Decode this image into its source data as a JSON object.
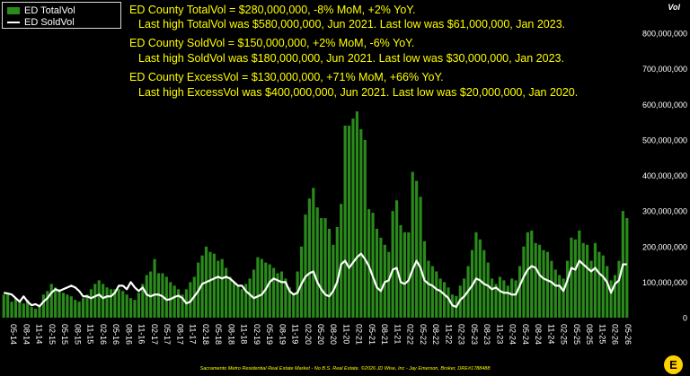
{
  "legend": {
    "total_label": "ED TotalVol",
    "sold_label": "ED SoldVol"
  },
  "unit_label": "Vol",
  "annotations": {
    "total_line1": "ED County TotalVol = $280,000,000, -8% MoM, +2% YoY.",
    "total_line2": "Last high TotalVol was $580,000,000, Jun 2021. Last low was $61,000,000, Jan 2023.",
    "sold_line1": "ED County SoldVol = $150,000,000, +2% MoM, -6% YoY.",
    "sold_line2": "Last high SoldVol was $180,000,000, Jun 2021. Last low was $30,000,000, Jan 2023.",
    "excess_line1": "ED County ExcessVol = $130,000,000, +71% MoM, +66% YoY.",
    "excess_line2": "Last high ExcessVol was $400,000,000, Jun 2021. Last low was $20,000,000, Jan 2020."
  },
  "footer": "Sacramento Metro Residential Real Estate Market - No B.S. Real Estate. ©2026 JD Wise, Inc - Jay Emerson, Broker, DRE#1788488",
  "logo_glyph": "E",
  "colors": {
    "bar": "#2a8a1b",
    "line": "#ffffff",
    "text": "#ffffff",
    "annotation": "#ffff00",
    "background": "#000000"
  },
  "chart_data": {
    "type": "bar",
    "ylim": [
      0,
      800000000
    ],
    "y_ticks": [
      0,
      100000000,
      200000000,
      300000000,
      400000000,
      500000000,
      600000000,
      700000000,
      800000000
    ],
    "y_tick_labels": [
      "0",
      "100,000,000",
      "200,000,000",
      "300,000,000",
      "400,000,000",
      "500,000,000",
      "600,000,000",
      "700,000,000",
      "800,000,000"
    ],
    "x_tick_labels": [
      "05-14",
      "08-14",
      "11-14",
      "02-15",
      "05-15",
      "08-15",
      "11-15",
      "02-16",
      "05-16",
      "08-16",
      "11-16",
      "02-17",
      "05-17",
      "08-17",
      "11-17",
      "02-18",
      "05-18",
      "08-18",
      "11-18",
      "02-19",
      "05-19",
      "08-19",
      "11-19",
      "02-20",
      "05-20",
      "08-20",
      "11-20",
      "02-21",
      "05-21",
      "08-21",
      "11-21",
      "02-22",
      "05-22",
      "08-22",
      "11-22",
      "02-23",
      "05-23",
      "08-23",
      "11-23",
      "02-24",
      "05-24",
      "08-24",
      "11-24",
      "02-25",
      "05-25",
      "08-25",
      "11-25",
      "02-26",
      "05-26"
    ],
    "series": [
      {
        "name": "ED TotalVol",
        "kind": "bar",
        "values": [
          65000000,
          65000000,
          45000000,
          55000000,
          45000000,
          40000000,
          50000000,
          30000000,
          25000000,
          35000000,
          65000000,
          75000000,
          95000000,
          85000000,
          80000000,
          70000000,
          65000000,
          60000000,
          50000000,
          45000000,
          55000000,
          65000000,
          80000000,
          95000000,
          105000000,
          95000000,
          85000000,
          80000000,
          80000000,
          80000000,
          75000000,
          65000000,
          55000000,
          50000000,
          70000000,
          95000000,
          120000000,
          130000000,
          165000000,
          125000000,
          125000000,
          115000000,
          100000000,
          90000000,
          80000000,
          65000000,
          80000000,
          100000000,
          115000000,
          155000000,
          175000000,
          200000000,
          185000000,
          180000000,
          160000000,
          165000000,
          140000000,
          115000000,
          100000000,
          90000000,
          80000000,
          95000000,
          110000000,
          135000000,
          170000000,
          165000000,
          155000000,
          150000000,
          140000000,
          125000000,
          130000000,
          110000000,
          85000000,
          70000000,
          130000000,
          200000000,
          290000000,
          335000000,
          365000000,
          310000000,
          280000000,
          280000000,
          250000000,
          205000000,
          255000000,
          320000000,
          540000000,
          540000000,
          560000000,
          580000000,
          530000000,
          500000000,
          305000000,
          295000000,
          250000000,
          225000000,
          205000000,
          185000000,
          300000000,
          330000000,
          260000000,
          240000000,
          240000000,
          410000000,
          385000000,
          340000000,
          215000000,
          160000000,
          145000000,
          130000000,
          110000000,
          100000000,
          85000000,
          65000000,
          61000000,
          90000000,
          110000000,
          145000000,
          190000000,
          240000000,
          220000000,
          190000000,
          155000000,
          110000000,
          95000000,
          115000000,
          105000000,
          90000000,
          110000000,
          105000000,
          145000000,
          200000000,
          240000000,
          245000000,
          210000000,
          205000000,
          190000000,
          185000000,
          160000000,
          135000000,
          120000000,
          110000000,
          160000000,
          225000000,
          220000000,
          245000000,
          210000000,
          205000000,
          160000000,
          210000000,
          185000000,
          175000000,
          145000000,
          105000000,
          120000000,
          160000000,
          300000000,
          280000000
        ]
      },
      {
        "name": "ED SoldVol",
        "kind": "line",
        "values": [
          70000000,
          68000000,
          65000000,
          55000000,
          45000000,
          60000000,
          45000000,
          35000000,
          38000000,
          32000000,
          45000000,
          55000000,
          70000000,
          80000000,
          75000000,
          80000000,
          85000000,
          90000000,
          85000000,
          75000000,
          60000000,
          60000000,
          55000000,
          60000000,
          65000000,
          55000000,
          60000000,
          60000000,
          70000000,
          90000000,
          90000000,
          80000000,
          100000000,
          85000000,
          75000000,
          85000000,
          65000000,
          60000000,
          65000000,
          65000000,
          60000000,
          50000000,
          52000000,
          58000000,
          62000000,
          55000000,
          40000000,
          45000000,
          60000000,
          75000000,
          95000000,
          100000000,
          105000000,
          110000000,
          115000000,
          110000000,
          115000000,
          110000000,
          100000000,
          90000000,
          90000000,
          75000000,
          65000000,
          55000000,
          60000000,
          65000000,
          80000000,
          100000000,
          110000000,
          105000000,
          100000000,
          100000000,
          75000000,
          65000000,
          70000000,
          95000000,
          115000000,
          125000000,
          130000000,
          100000000,
          80000000,
          65000000,
          60000000,
          75000000,
          100000000,
          150000000,
          160000000,
          140000000,
          155000000,
          170000000,
          180000000,
          165000000,
          145000000,
          115000000,
          85000000,
          75000000,
          100000000,
          105000000,
          135000000,
          140000000,
          100000000,
          95000000,
          105000000,
          135000000,
          160000000,
          140000000,
          105000000,
          95000000,
          90000000,
          80000000,
          75000000,
          65000000,
          55000000,
          35000000,
          30000000,
          50000000,
          60000000,
          75000000,
          90000000,
          110000000,
          105000000,
          95000000,
          90000000,
          80000000,
          85000000,
          75000000,
          70000000,
          70000000,
          65000000,
          65000000,
          90000000,
          115000000,
          135000000,
          145000000,
          140000000,
          120000000,
          110000000,
          105000000,
          100000000,
          90000000,
          90000000,
          75000000,
          105000000,
          140000000,
          135000000,
          160000000,
          150000000,
          140000000,
          130000000,
          140000000,
          125000000,
          115000000,
          100000000,
          70000000,
          95000000,
          105000000,
          150000000,
          150000000
        ]
      }
    ],
    "grid": false,
    "legend_position": "top-left"
  }
}
